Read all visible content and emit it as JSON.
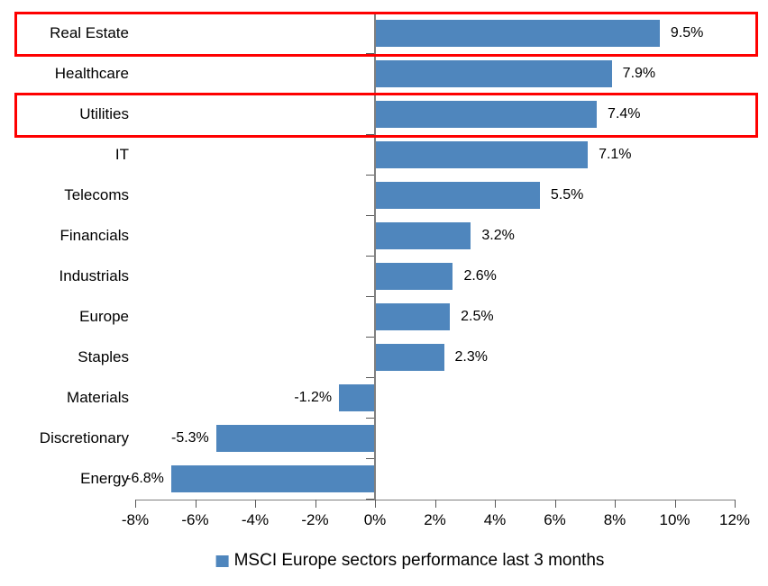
{
  "chart_data": {
    "type": "bar",
    "orientation": "horizontal",
    "categories": [
      "Real Estate",
      "Healthcare",
      "Utilities",
      "IT",
      "Telecoms",
      "Financials",
      "Industrials",
      "Europe",
      "Staples",
      "Materials",
      "Discretionary",
      "Energy"
    ],
    "values": [
      9.5,
      7.9,
      7.4,
      7.1,
      5.5,
      3.2,
      2.6,
      2.5,
      2.3,
      -1.2,
      -5.3,
      -6.8
    ],
    "data_labels": [
      "9.5%",
      "7.9%",
      "7.4%",
      "7.1%",
      "5.5%",
      "3.2%",
      "2.6%",
      "2.5%",
      "2.3%",
      "-1.2%",
      "-5.3%",
      "-6.8%"
    ],
    "title": "",
    "xlabel": "",
    "ylabel": "",
    "xlim": [
      -8,
      12
    ],
    "x_tick_values": [
      -8,
      -6,
      -4,
      -2,
      0,
      2,
      4,
      6,
      8,
      10,
      12
    ],
    "x_tick_labels": [
      "-8%",
      "-6%",
      "-4%",
      "-2%",
      "0%",
      "2%",
      "4%",
      "6%",
      "8%",
      "10%",
      "12%"
    ],
    "grid": false,
    "legend_position": "bottom",
    "legend_label": "MSCI Europe sectors performance last 3 months",
    "bar_color": "#4f86bd",
    "highlight_color": "#fe0000",
    "highlighted_categories": [
      "Real Estate",
      "Utilities"
    ]
  }
}
